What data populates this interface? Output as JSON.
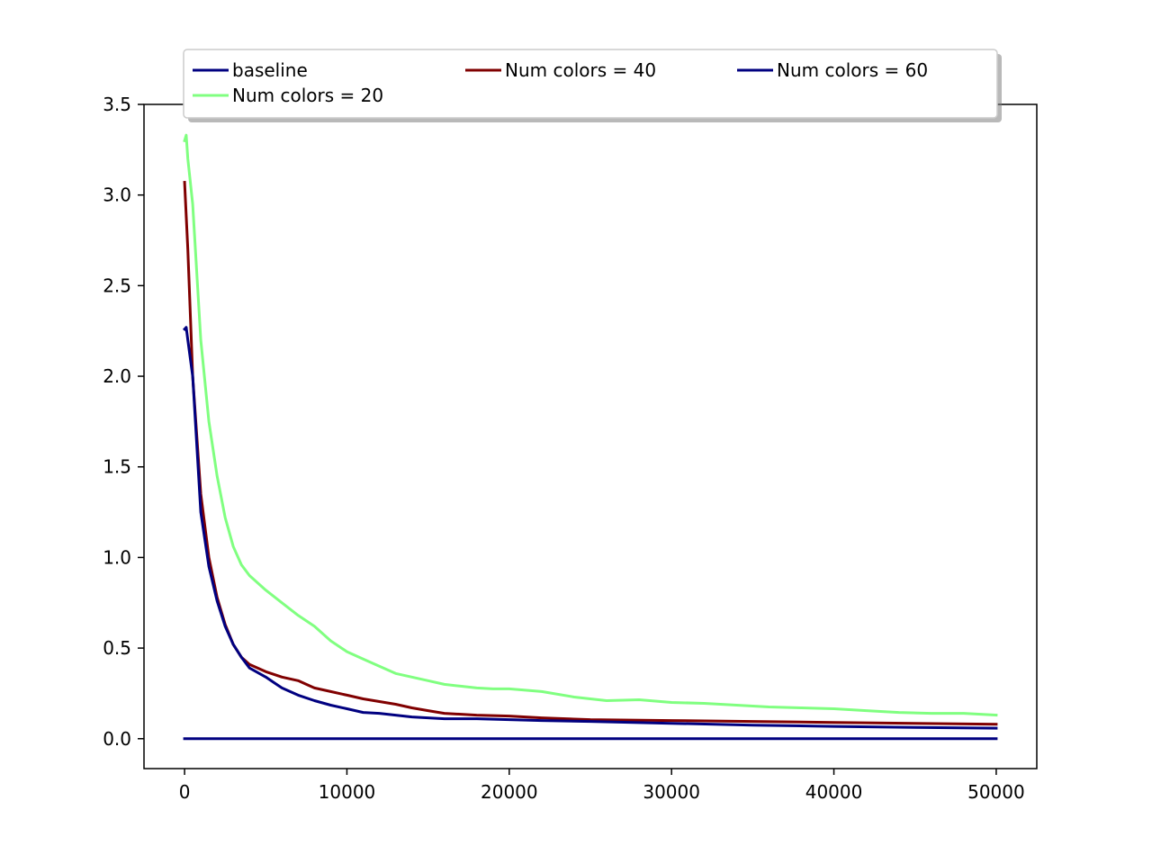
{
  "chart_data": {
    "type": "line",
    "title": "",
    "xlabel": "",
    "ylabel": "",
    "xlim": [
      -2500,
      52500
    ],
    "ylim": [
      -0.165,
      3.5
    ],
    "xticks": [
      0,
      10000,
      20000,
      30000,
      40000,
      50000
    ],
    "xtick_labels": [
      "0",
      "10000",
      "20000",
      "30000",
      "40000",
      "50000"
    ],
    "yticks": [
      0.0,
      0.5,
      1.0,
      1.5,
      2.0,
      2.5,
      3.0,
      3.5
    ],
    "ytick_labels": [
      "0.0",
      "0.5",
      "1.0",
      "1.5",
      "2.0",
      "2.5",
      "3.0",
      "3.5"
    ],
    "grid": false,
    "legend": {
      "placement": "top-center",
      "columns": 3
    },
    "series": [
      {
        "name": "baseline",
        "color": "#000080",
        "x": [
          0,
          50000
        ],
        "y": [
          0.0,
          0.0
        ]
      },
      {
        "name": "Num colors = 20",
        "color": "#80ff80",
        "x": [
          0,
          100,
          200,
          500,
          1000,
          1500,
          2000,
          2500,
          3000,
          3500,
          4000,
          5000,
          6000,
          7000,
          8000,
          9000,
          10000,
          11000,
          12000,
          13000,
          14000,
          15000,
          16000,
          17000,
          18000,
          19000,
          20000,
          22000,
          24000,
          26000,
          28000,
          30000,
          32000,
          34000,
          36000,
          38000,
          40000,
          42000,
          44000,
          46000,
          48000,
          50000
        ],
        "y": [
          3.3,
          3.33,
          3.2,
          2.95,
          2.2,
          1.75,
          1.45,
          1.22,
          1.06,
          0.96,
          0.9,
          0.82,
          0.75,
          0.68,
          0.62,
          0.54,
          0.48,
          0.44,
          0.4,
          0.36,
          0.34,
          0.32,
          0.3,
          0.29,
          0.28,
          0.275,
          0.275,
          0.26,
          0.23,
          0.21,
          0.215,
          0.2,
          0.195,
          0.185,
          0.175,
          0.17,
          0.165,
          0.155,
          0.145,
          0.14,
          0.14,
          0.13
        ]
      },
      {
        "name": "Num colors = 40",
        "color": "#800000",
        "x": [
          0,
          200,
          500,
          1000,
          1500,
          2000,
          2500,
          3000,
          3500,
          4000,
          5000,
          6000,
          7000,
          7500,
          8000,
          9000,
          10000,
          11000,
          12000,
          13000,
          14000,
          15000,
          16000,
          18000,
          20000,
          22000,
          25000,
          30000,
          35000,
          40000,
          45000,
          50000
        ],
        "y": [
          3.07,
          2.7,
          2.0,
          1.35,
          1.0,
          0.78,
          0.63,
          0.52,
          0.45,
          0.41,
          0.37,
          0.34,
          0.32,
          0.3,
          0.28,
          0.26,
          0.24,
          0.22,
          0.205,
          0.19,
          0.17,
          0.155,
          0.14,
          0.13,
          0.125,
          0.115,
          0.105,
          0.1,
          0.095,
          0.09,
          0.085,
          0.08
        ]
      },
      {
        "name": "Num colors = 60",
        "color": "#000080",
        "x": [
          0,
          100,
          200,
          500,
          1000,
          1500,
          2000,
          2500,
          3000,
          3500,
          4000,
          5000,
          5500,
          6000,
          7000,
          8000,
          9000,
          10000,
          11000,
          12000,
          13000,
          14000,
          15000,
          16000,
          18000,
          20000,
          22000,
          25000,
          30000,
          35000,
          40000,
          45000,
          50000
        ],
        "y": [
          2.26,
          2.27,
          2.2,
          2.0,
          1.25,
          0.95,
          0.76,
          0.62,
          0.52,
          0.45,
          0.39,
          0.34,
          0.31,
          0.28,
          0.24,
          0.21,
          0.185,
          0.165,
          0.145,
          0.14,
          0.13,
          0.12,
          0.115,
          0.11,
          0.11,
          0.105,
          0.1,
          0.095,
          0.085,
          0.075,
          0.068,
          0.062,
          0.058
        ]
      }
    ],
    "legend_entries": [
      "baseline",
      "Num colors = 40",
      "Num colors = 60",
      "Num colors = 20"
    ]
  }
}
